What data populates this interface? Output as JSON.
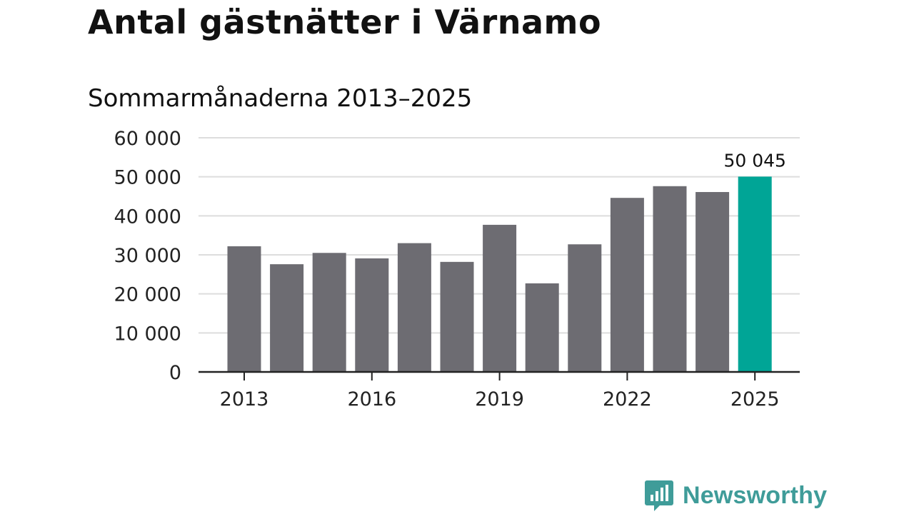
{
  "header": {
    "title": "Antal gästnätter i Värnamo",
    "subtitle": "Sommarmånaderna 2013–2025"
  },
  "brand": {
    "name": "Newsworthy",
    "icon": "newsworthy-logo-icon",
    "color": "#3f9c99"
  },
  "colors": {
    "bar": "#6d6c72",
    "highlight": "#00a596",
    "grid": "#dddddd",
    "axis": "#222222"
  },
  "chart_data": {
    "type": "bar",
    "title": "Antal gästnätter i Värnamo",
    "subtitle": "Sommarmånaderna 2013–2025",
    "categories": [
      "2013",
      "2014",
      "2015",
      "2016",
      "2017",
      "2018",
      "2019",
      "2020",
      "2021",
      "2022",
      "2023",
      "2024",
      "2025"
    ],
    "values": [
      32200,
      27600,
      30500,
      29100,
      33000,
      28200,
      37700,
      22700,
      32700,
      44600,
      47600,
      46100,
      50045
    ],
    "x_tick_labels": [
      "2013",
      "2016",
      "2019",
      "2022",
      "2025"
    ],
    "y_ticks": [
      0,
      10000,
      20000,
      30000,
      40000,
      50000,
      60000
    ],
    "y_tick_labels": [
      "0",
      "10 000",
      "20 000",
      "30 000",
      "40 000",
      "50 000",
      "60 000"
    ],
    "ylim": [
      0,
      60000
    ],
    "grid": true,
    "highlight_index": 12,
    "annotation": {
      "category": "2025",
      "text": "50 045"
    }
  }
}
